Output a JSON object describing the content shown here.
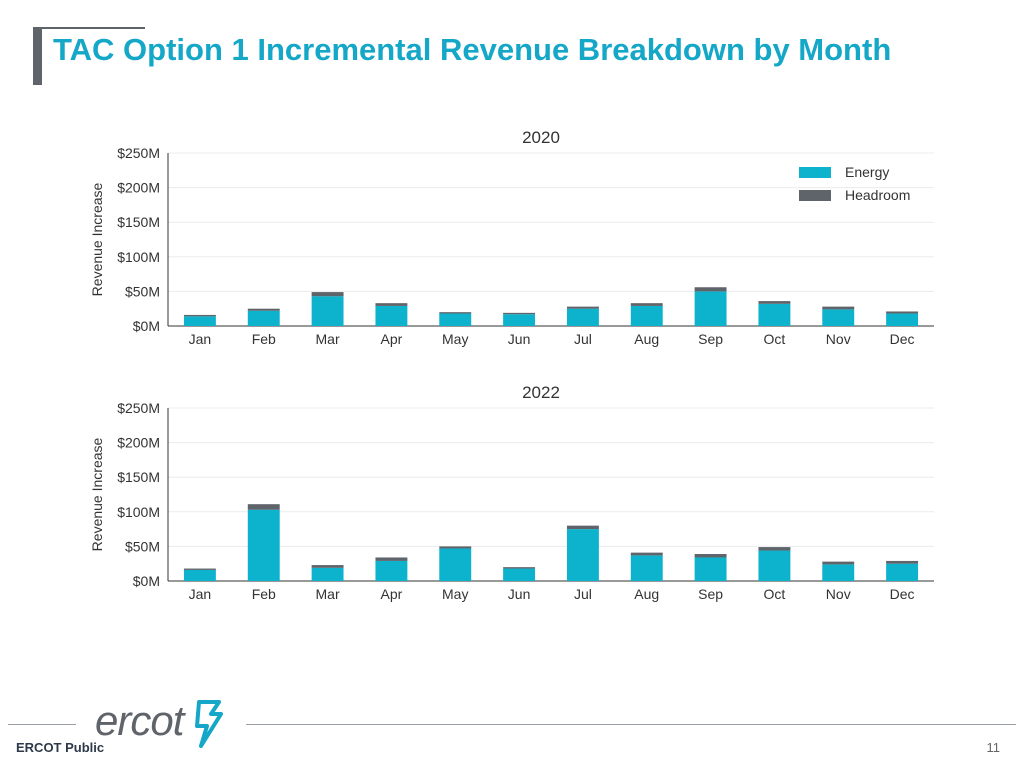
{
  "page": {
    "title": "TAC Option 1 Incremental Revenue Breakdown by Month",
    "footer_label": "ERCOT Public",
    "page_number": "11",
    "logo_text": "ercot"
  },
  "colors": {
    "energy": "#0db2cd",
    "headroom": "#5f646b",
    "title": "#14a7c7"
  },
  "chart_data": [
    {
      "type": "bar",
      "stacked": true,
      "title": "2020",
      "xlabel": "",
      "ylabel": "Revenue Increase",
      "ylim": [
        0,
        250
      ],
      "yticks": [
        "$0M",
        "$50M",
        "$100M",
        "$150M",
        "$200M",
        "$250M"
      ],
      "legend_position": "top-right",
      "categories": [
        "Jan",
        "Feb",
        "Mar",
        "Apr",
        "May",
        "Jun",
        "Jul",
        "Aug",
        "Sep",
        "Oct",
        "Nov",
        "Dec"
      ],
      "series": [
        {
          "name": "Energy",
          "color": "#0db2cd",
          "values": [
            14,
            22,
            43,
            29,
            18,
            17,
            25,
            29,
            50,
            32,
            24,
            18
          ]
        },
        {
          "name": "Headroom",
          "color": "#5f646b",
          "values": [
            2,
            3,
            6,
            4,
            2,
            2,
            3,
            4,
            6,
            4,
            4,
            3
          ]
        }
      ]
    },
    {
      "type": "bar",
      "stacked": true,
      "title": "2022",
      "xlabel": "",
      "ylabel": "Revenue Increase",
      "ylim": [
        0,
        250
      ],
      "yticks": [
        "$0M",
        "$50M",
        "$100M",
        "$150M",
        "$200M",
        "$250M"
      ],
      "legend_position": "none",
      "categories": [
        "Jan",
        "Feb",
        "Mar",
        "Apr",
        "May",
        "Jun",
        "Jul",
        "Aug",
        "Sep",
        "Oct",
        "Nov",
        "Dec"
      ],
      "series": [
        {
          "name": "Energy",
          "color": "#0db2cd",
          "values": [
            16,
            103,
            19,
            29,
            47,
            18,
            75,
            37,
            34,
            44,
            24,
            25
          ]
        },
        {
          "name": "Headroom",
          "color": "#5f646b",
          "values": [
            2,
            8,
            4,
            5,
            3,
            2,
            5,
            4,
            5,
            5,
            4,
            4
          ]
        }
      ]
    }
  ]
}
